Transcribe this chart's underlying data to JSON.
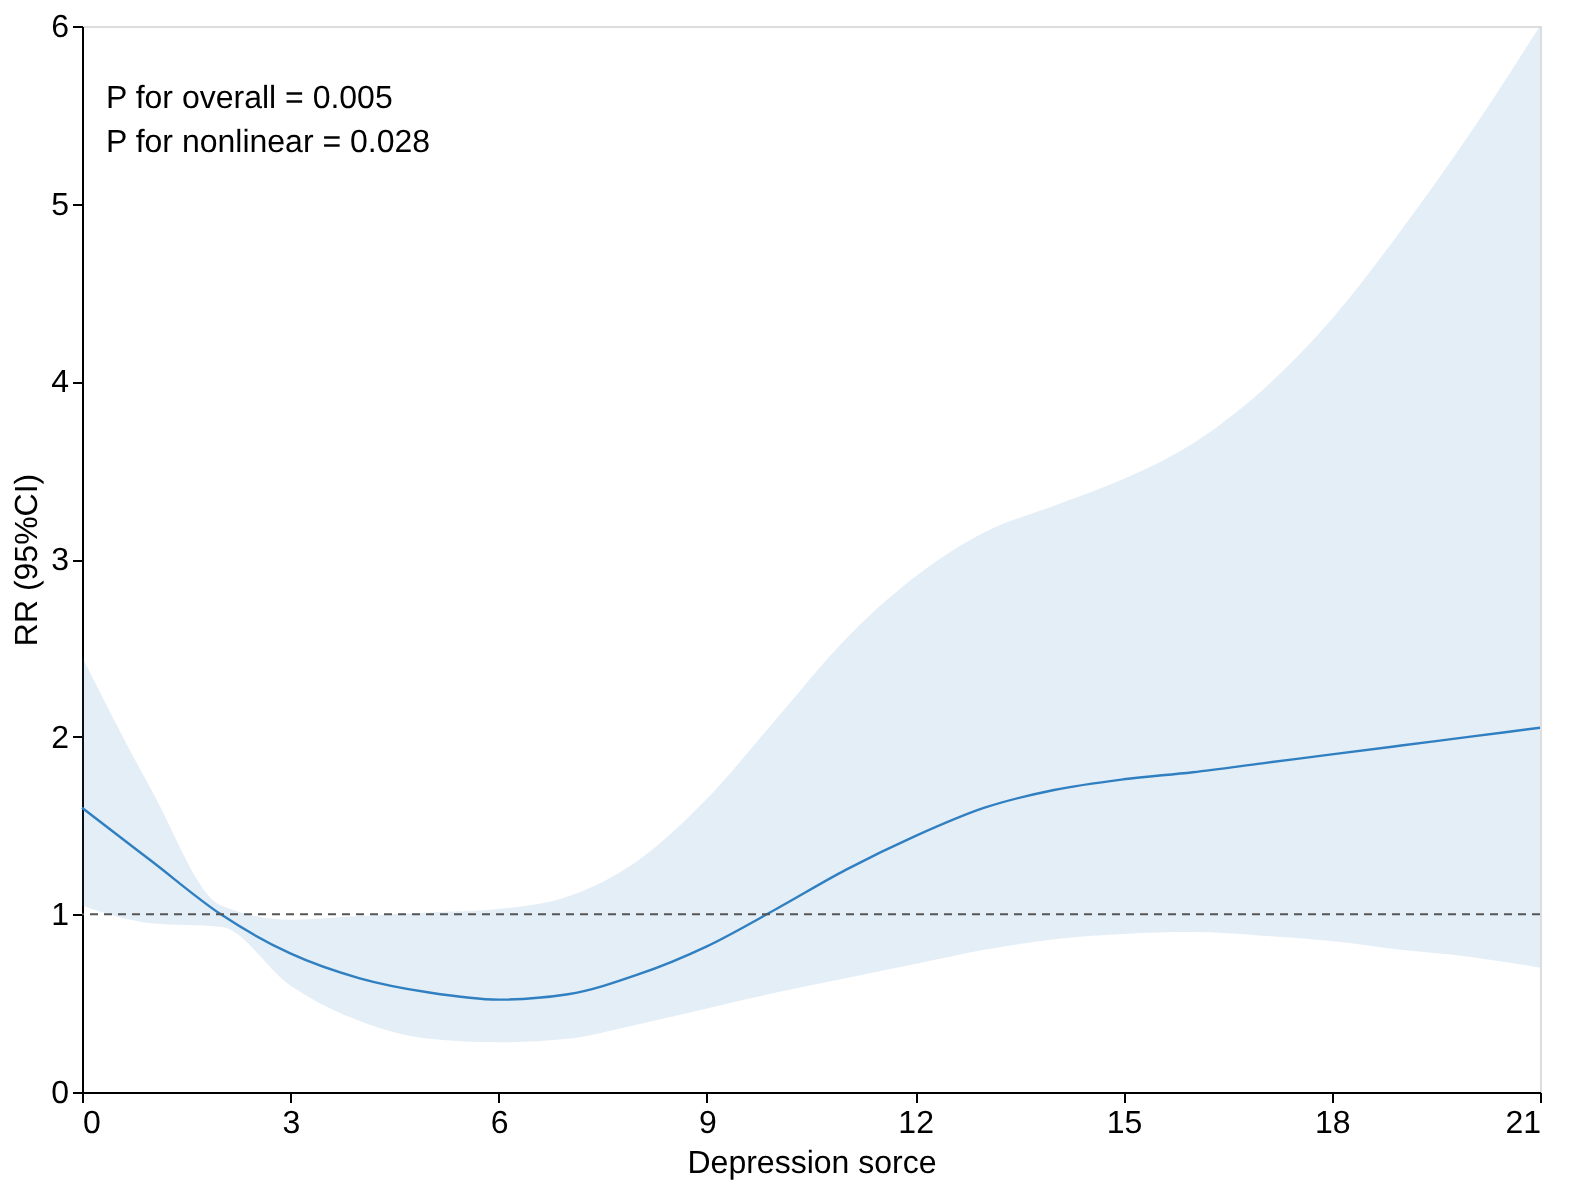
{
  "chart_data": {
    "type": "line",
    "xlabel": "Depression sorce",
    "ylabel": "RR (95%CI)",
    "x": [
      0,
      1,
      2,
      3,
      4,
      5,
      6,
      7,
      8,
      9,
      10,
      11,
      12,
      13,
      14,
      15,
      16,
      17,
      18,
      19,
      20,
      21
    ],
    "series": [
      {
        "color": "#2f7fc1",
        "values": [
          1.6,
          1.3,
          1.0,
          0.78,
          0.64,
          0.56,
          0.52,
          0.55,
          0.66,
          0.82,
          1.03,
          1.25,
          1.44,
          1.6,
          1.7,
          1.76,
          1.8,
          1.85,
          1.9,
          1.95,
          2.0,
          2.05
        ],
        "lower": [
          1.05,
          0.95,
          0.93,
          0.6,
          0.4,
          0.3,
          0.28,
          0.3,
          0.38,
          0.47,
          0.56,
          0.64,
          0.72,
          0.8,
          0.86,
          0.89,
          0.9,
          0.88,
          0.85,
          0.8,
          0.76,
          0.7
        ],
        "upper": [
          2.45,
          1.7,
          1.05,
          0.97,
          0.99,
          1.01,
          1.03,
          1.1,
          1.3,
          1.65,
          2.1,
          2.55,
          2.9,
          3.15,
          3.3,
          3.45,
          3.65,
          3.95,
          4.35,
          4.85,
          5.4,
          6.0
        ]
      }
    ],
    "xlim": [
      0,
      21
    ],
    "xticks": [
      0,
      3,
      6,
      9,
      12,
      15,
      18,
      21
    ],
    "ylim": [
      0,
      6
    ],
    "yticks": [
      0,
      1,
      2,
      3,
      4,
      5,
      6
    ],
    "ref_lines": [
      {
        "axis": "y",
        "value": 1,
        "color": "#555555",
        "line_style": "dashed"
      }
    ],
    "annotations": [
      "P for overall = 0.005",
      "P for nonlinear = 0.028"
    ],
    "grid": false,
    "marker": "none",
    "line_style": "solid"
  }
}
